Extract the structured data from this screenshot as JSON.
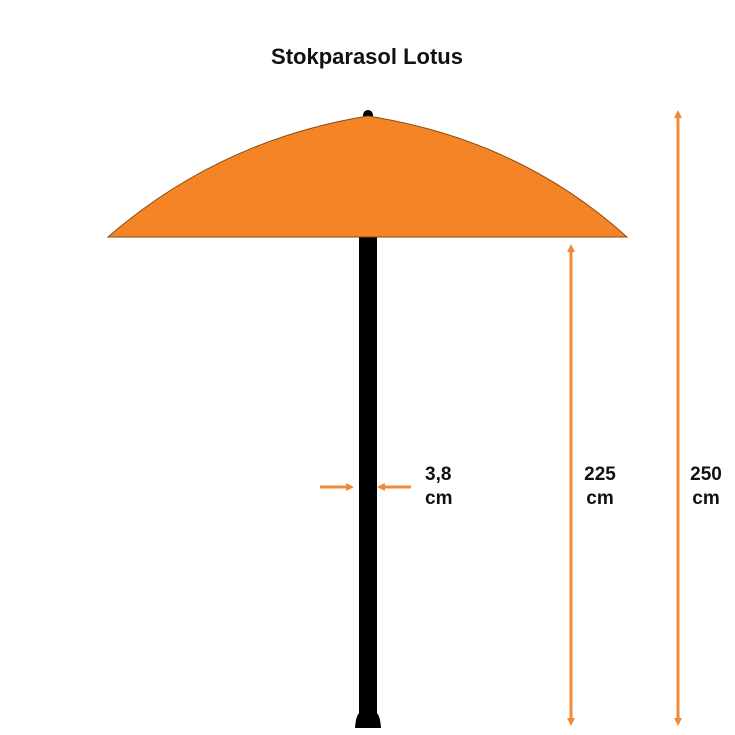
{
  "title": "Stokparasol Lotus",
  "dimensions": {
    "pole_diameter": {
      "value": "3,8",
      "unit": "cm"
    },
    "canopy_height": {
      "value": "225",
      "unit": "cm"
    },
    "total_height": {
      "value": "250",
      "unit": "cm"
    }
  },
  "colors": {
    "canopy": "#F58426",
    "arrow": "#F08A3A",
    "pole": "#000000"
  }
}
